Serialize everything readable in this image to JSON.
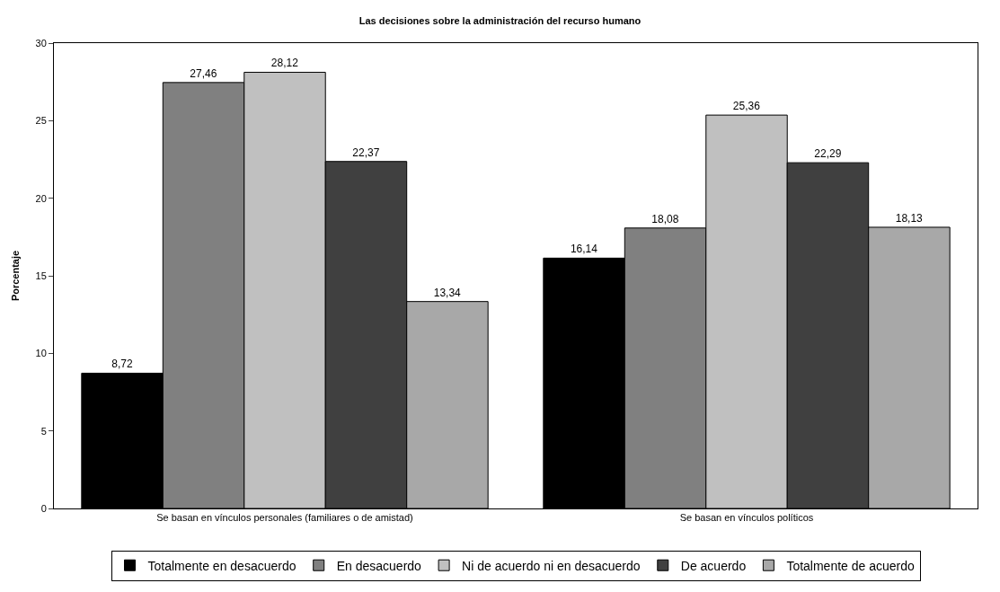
{
  "chart_data": {
    "type": "bar",
    "title": "Las decisiones sobre la administración del recurso humano",
    "ylabel": "Porcentaje",
    "categories": [
      "Se basan en vínculos personales (familiares o de amistad)",
      "Se basan en vínculos políticos"
    ],
    "series": [
      {
        "name": "Totalmente en desacuerdo",
        "color": "#000000",
        "values": [
          8.72,
          16.14
        ],
        "value_labels": [
          "8,72",
          "16,14"
        ]
      },
      {
        "name": "En desacuerdo",
        "color": "#808080",
        "values": [
          27.46,
          18.08
        ],
        "value_labels": [
          "27,46",
          "18,08"
        ]
      },
      {
        "name": "Ni de acuerdo ni en desacuerdo",
        "color": "#c0c0c0",
        "values": [
          28.12,
          25.36
        ],
        "value_labels": [
          "28,12",
          "25,36"
        ]
      },
      {
        "name": "De acuerdo",
        "color": "#404040",
        "values": [
          22.37,
          22.29
        ],
        "value_labels": [
          "22,37",
          "22,29"
        ]
      },
      {
        "name": "Totalmente de acuerdo",
        "color": "#a8a8a8",
        "values": [
          13.34,
          18.13
        ],
        "value_labels": [
          "13,34",
          "18,13"
        ]
      }
    ],
    "ylim": [
      0,
      30
    ],
    "yticks": [
      0,
      5,
      10,
      15,
      20,
      25,
      30
    ],
    "grid": false,
    "legend": "bottom"
  }
}
